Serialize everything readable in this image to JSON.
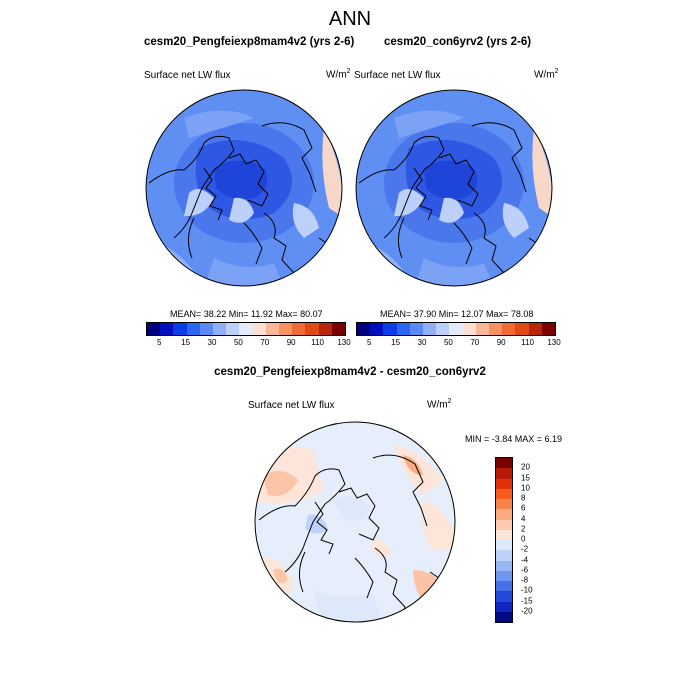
{
  "title": "ANN",
  "panels": [
    {
      "title": "cesm20_Pengfeiexp8mam4v2 (yrs 2-6)",
      "variable": "Surface net LW flux",
      "units": "W/m",
      "units_exp": "2",
      "stats": "MEAN= 38.22  Min= 11.92  Max= 80.07"
    },
    {
      "title": "cesm20_con6yrv2 (yrs 2-6)",
      "variable": "Surface net LW flux",
      "units": "W/m",
      "units_exp": "2",
      "stats": "MEAN= 37.90  Min= 12.07  Max= 78.08"
    }
  ],
  "diff_panel": {
    "title": "cesm20_Pengfeiexp8mam4v2 - cesm20_con6yrv2",
    "variable": "Surface net LW flux",
    "units": "W/m",
    "units_exp": "2",
    "stats": "MIN =  -3.84 MAX =   6.19"
  },
  "colorbar_abs": {
    "colors": [
      "#00007f",
      "#0010c0",
      "#0c3ce8",
      "#2a66f2",
      "#5a8bf4",
      "#8fb0f7",
      "#bdd0fa",
      "#e4ecfb",
      "#fde0d2",
      "#fbb899",
      "#f7915f",
      "#f06a33",
      "#e04a17",
      "#b82508",
      "#7a0000"
    ],
    "tick_labels": [
      "5",
      "15",
      "30",
      "50",
      "70",
      "90",
      "110",
      "130"
    ]
  },
  "colorbar_diff": {
    "colors": [
      "#7a0000",
      "#b81806",
      "#e2300c",
      "#f55a1c",
      "#f9824b",
      "#fbab80",
      "#fdcab0",
      "#fde6d9",
      "#dde9fb",
      "#bcd2f8",
      "#98b6f4",
      "#6e96f0",
      "#4670ea",
      "#2448dc",
      "#0f24c0",
      "#000a85"
    ],
    "tick_labels": [
      "20",
      "15",
      "10",
      "8",
      "6",
      "4",
      "2",
      "0",
      "-2",
      "-4",
      "-6",
      "-8",
      "-10",
      "-15",
      "-20"
    ]
  }
}
